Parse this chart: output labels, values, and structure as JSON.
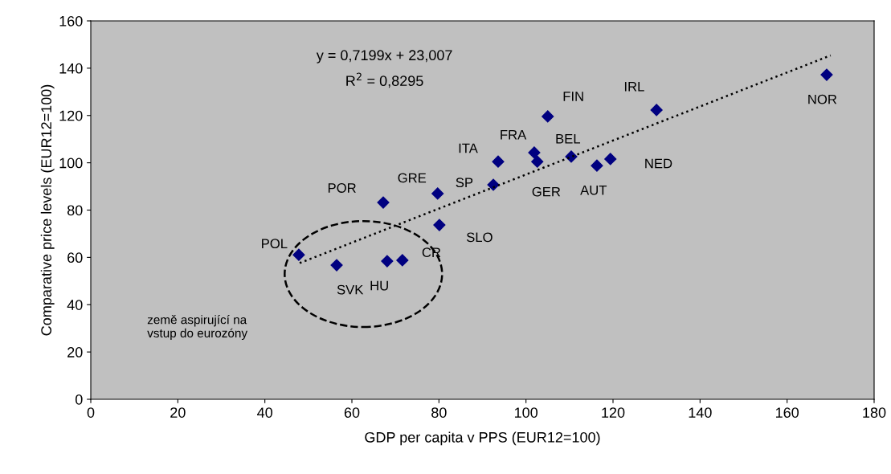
{
  "chart_data": {
    "type": "scatter",
    "xlabel": "GDP per capita v PPS (EUR12=100)",
    "ylabel": "Comparative price levels (EUR12=100)",
    "xlim": [
      0,
      180
    ],
    "ylim": [
      0,
      160
    ],
    "xticks": [
      0,
      20,
      40,
      60,
      80,
      100,
      120,
      140,
      160,
      180
    ],
    "yticks": [
      0,
      20,
      40,
      60,
      80,
      100,
      120,
      140,
      160
    ],
    "grid": false,
    "legend": false,
    "marker": "diamond",
    "series": [
      {
        "name": "POL",
        "color": "#000080",
        "x": [
          47.8
        ],
        "values": [
          61.1
        ]
      },
      {
        "name": "SVK",
        "color": "#000080",
        "x": [
          56.5
        ],
        "values": [
          56.7
        ]
      },
      {
        "name": "HU",
        "color": "#000080",
        "x": [
          68.1
        ],
        "values": [
          58.4
        ]
      },
      {
        "name": "CR",
        "color": "#000080",
        "x": [
          71.6
        ],
        "values": [
          58.8
        ]
      },
      {
        "name": "POR",
        "color": "#000080",
        "x": [
          67.2
        ],
        "values": [
          83.2
        ]
      },
      {
        "name": "GRE",
        "color": "#000080",
        "x": [
          79.7
        ],
        "values": [
          87.0
        ]
      },
      {
        "name": "SLO",
        "color": "#000080",
        "x": [
          80.1
        ],
        "values": [
          73.7
        ]
      },
      {
        "name": "SP",
        "color": "#000080",
        "x": [
          92.5
        ],
        "values": [
          90.7
        ]
      },
      {
        "name": "ITA",
        "color": "#000080",
        "x": [
          93.6
        ],
        "values": [
          100.5
        ]
      },
      {
        "name": "FRA",
        "color": "#000080",
        "x": [
          101.9
        ],
        "values": [
          104.3
        ]
      },
      {
        "name": "GER",
        "color": "#000080",
        "x": [
          102.6
        ],
        "values": [
          100.5
        ]
      },
      {
        "name": "FIN",
        "color": "#000080",
        "x": [
          105.0
        ],
        "values": [
          119.6
        ]
      },
      {
        "name": "BEL",
        "color": "#000080",
        "x": [
          110.4
        ],
        "values": [
          102.6
        ]
      },
      {
        "name": "AUT",
        "color": "#000080",
        "x": [
          116.3
        ],
        "values": [
          98.8
        ]
      },
      {
        "name": "NED",
        "color": "#000080",
        "x": [
          119.4
        ],
        "values": [
          101.6
        ]
      },
      {
        "name": "IRL",
        "color": "#000080",
        "x": [
          130.0
        ],
        "values": [
          122.3
        ]
      },
      {
        "name": "NOR",
        "color": "#000080",
        "x": [
          169.1
        ],
        "values": [
          137.2
        ]
      },
      {
        "type": "line",
        "color": "#000000",
        "line_style": "dotted",
        "marker": "none",
        "x": [
          48,
          170
        ],
        "values": [
          57.6,
          145.4
        ]
      }
    ],
    "annotations": [
      "y = 0,7199x + 23,007",
      "R$^{2}$ = 0,8295",
      "země aspirující na\nvstup do eurozóny"
    ]
  }
}
